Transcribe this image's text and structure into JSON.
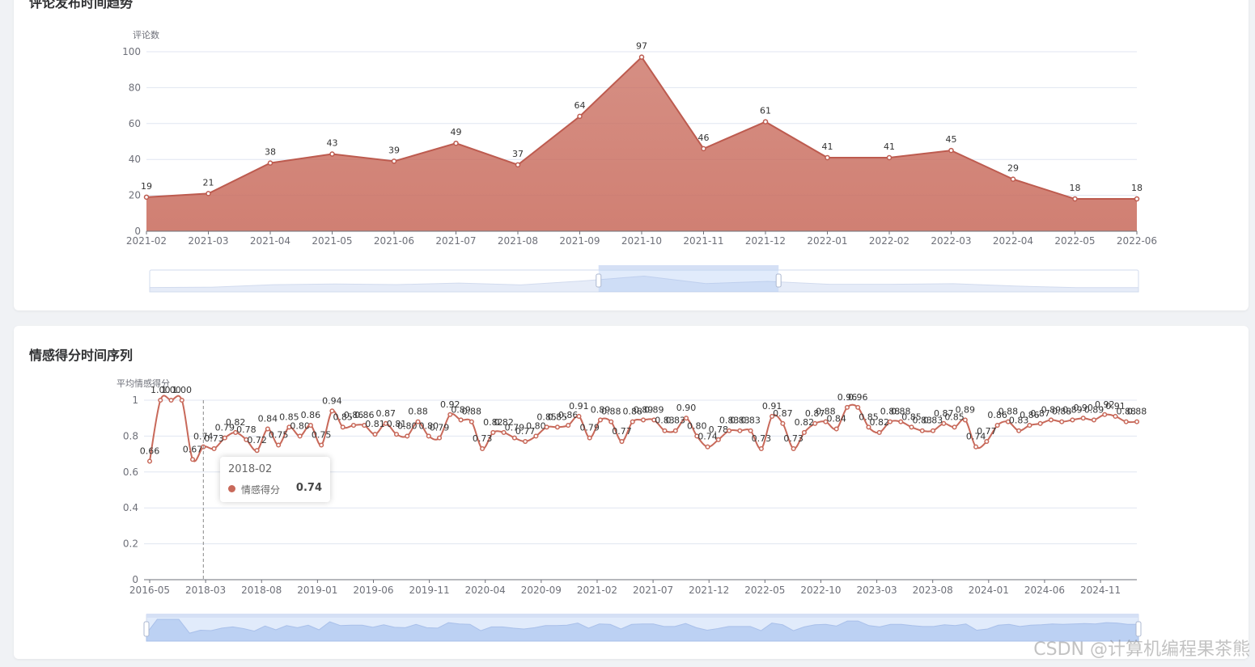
{
  "cards": [
    {
      "title": "评论发布时间趋势"
    },
    {
      "title": "情感得分时间序列"
    }
  ],
  "chart_data": [
    {
      "type": "area",
      "ylabel": "评论数",
      "ylim": [
        0,
        100
      ],
      "yticks": [
        0,
        20,
        40,
        60,
        80,
        100
      ],
      "x": [
        "2021-02",
        "2021-03",
        "2021-04",
        "2021-05",
        "2021-06",
        "2021-07",
        "2021-08",
        "2021-09",
        "2021-10",
        "2021-11",
        "2021-12",
        "2022-01",
        "2022-02",
        "2022-03",
        "2022-04",
        "2022-05",
        "2022-06"
      ],
      "values": [
        19,
        21,
        38,
        43,
        39,
        49,
        37,
        64,
        97,
        46,
        61,
        41,
        41,
        45,
        29,
        18,
        18
      ],
      "data_labels": true,
      "grid": true,
      "color": "#c8695a",
      "datazoom": {
        "start": 0.454,
        "end": 0.636
      }
    },
    {
      "type": "line",
      "ylabel": "平均情感得分",
      "ylim": [
        0,
        1
      ],
      "yticks": [
        "0",
        "0.2",
        "0.4",
        "0.6",
        "0.8",
        "1"
      ],
      "x_start": "2016-05",
      "x_tick_labels": [
        "2016-05",
        "2018-03",
        "2018-08",
        "2019-01",
        "2019-06",
        "2019-11",
        "2020-04",
        "2020-09",
        "2021-02",
        "2021-07",
        "2021-12",
        "2022-05",
        "2022-10",
        "2023-03",
        "2023-08",
        "2024-01",
        "2024-06",
        "2024-11"
      ],
      "values": [
        0.66,
        1.0,
        1.0,
        1.0,
        0.67,
        0.74,
        0.73,
        0.79,
        0.82,
        0.78,
        0.72,
        0.84,
        0.75,
        0.85,
        0.8,
        0.86,
        0.75,
        0.94,
        0.85,
        0.86,
        0.86,
        0.81,
        0.87,
        0.81,
        0.8,
        0.88,
        0.8,
        0.79,
        0.92,
        0.89,
        0.88,
        0.73,
        0.82,
        0.82,
        0.79,
        0.77,
        0.8,
        0.85,
        0.85,
        0.86,
        0.91,
        0.79,
        0.89,
        0.88,
        0.77,
        0.88,
        0.89,
        0.89,
        0.83,
        0.83,
        0.9,
        0.8,
        0.74,
        0.78,
        0.83,
        0.83,
        0.83,
        0.73,
        0.91,
        0.87,
        0.73,
        0.82,
        0.87,
        0.88,
        0.84,
        0.96,
        0.96,
        0.85,
        0.82,
        0.88,
        0.88,
        0.85,
        0.83,
        0.83,
        0.87,
        0.85,
        0.89,
        0.74,
        0.77,
        0.86,
        0.88,
        0.83,
        0.86,
        0.87,
        0.89,
        0.88,
        0.89,
        0.9,
        0.89,
        0.92,
        0.91,
        0.88,
        0.88
      ],
      "data_labels": true,
      "grid": true,
      "series_name": "情感得分",
      "color": "#c8695a",
      "tooltip": {
        "title": "2018-02",
        "series": "情感得分",
        "value": "0.74"
      }
    }
  ],
  "watermark": "CSDN @计算机编程果茶熊"
}
